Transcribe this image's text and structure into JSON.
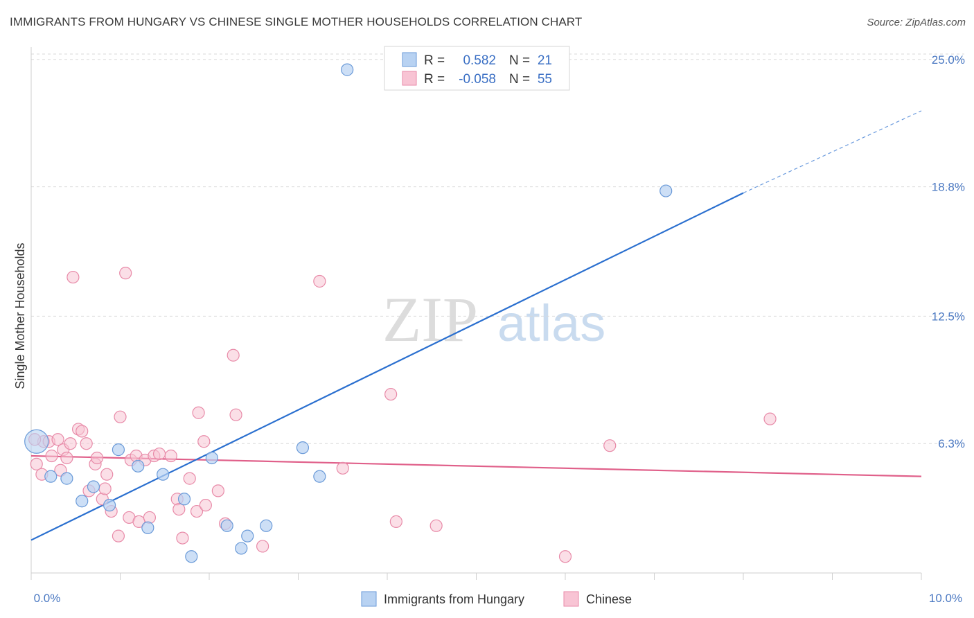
{
  "title": "IMMIGRANTS FROM HUNGARY VS CHINESE SINGLE MOTHER HOUSEHOLDS CORRELATION CHART",
  "source": "Source: ZipAtlas.com",
  "watermark": {
    "zip": "ZIP",
    "atlas": "atlas"
  },
  "colors": {
    "hungary_fill": "#b8d2f2",
    "hungary_stroke": "#6a9ad8",
    "hungary_line": "#2a6fcf",
    "chinese_fill": "#f8c4d4",
    "chinese_stroke": "#e88aa8",
    "chinese_line": "#e0608a",
    "tick_label": "#4a78c2",
    "grid": "#d9d9d9"
  },
  "legend": {
    "r_label": "R =",
    "n_label": "N =",
    "hungary": {
      "r": "0.582",
      "n": "21"
    },
    "chinese": {
      "r": "-0.058",
      "n": "55"
    }
  },
  "chart_data": {
    "type": "scatter",
    "title": "IMMIGRANTS FROM HUNGARY VS CHINESE SINGLE MOTHER HOUSEHOLDS CORRELATION CHART",
    "xlabel": "",
    "ylabel": "Single Mother Households",
    "xlim": [
      0,
      10
    ],
    "ylim": [
      0,
      25.6
    ],
    "x_tick_labels": [
      "0.0%",
      "10.0%"
    ],
    "y_ticks": [
      6.3,
      12.5,
      18.8,
      25.0
    ],
    "y_tick_labels": [
      "6.3%",
      "12.5%",
      "18.8%",
      "25.0%"
    ],
    "grid": true,
    "legend_position": "top-center",
    "series": [
      {
        "name": "Immigrants from Hungary",
        "r": 0.582,
        "n": 21,
        "trend": {
          "x": [
            0,
            8.0
          ],
          "y": [
            1.6,
            18.5
          ],
          "dashed_to": [
            10.0,
            22.5
          ]
        },
        "points": [
          {
            "x": 0.06,
            "y": 6.4,
            "big": true
          },
          {
            "x": 0.22,
            "y": 4.7
          },
          {
            "x": 0.4,
            "y": 4.6
          },
          {
            "x": 0.57,
            "y": 3.5
          },
          {
            "x": 0.7,
            "y": 4.2
          },
          {
            "x": 0.88,
            "y": 3.3
          },
          {
            "x": 0.98,
            "y": 6.0
          },
          {
            "x": 1.2,
            "y": 5.2
          },
          {
            "x": 1.31,
            "y": 2.2
          },
          {
            "x": 1.48,
            "y": 4.8
          },
          {
            "x": 1.72,
            "y": 3.6
          },
          {
            "x": 1.8,
            "y": 0.8
          },
          {
            "x": 2.03,
            "y": 5.6
          },
          {
            "x": 2.2,
            "y": 2.3
          },
          {
            "x": 2.36,
            "y": 1.2
          },
          {
            "x": 2.43,
            "y": 1.8
          },
          {
            "x": 2.64,
            "y": 2.3
          },
          {
            "x": 3.05,
            "y": 6.1
          },
          {
            "x": 3.24,
            "y": 4.7
          },
          {
            "x": 3.55,
            "y": 24.5
          },
          {
            "x": 7.13,
            "y": 18.6
          }
        ]
      },
      {
        "name": "Chinese",
        "r": -0.058,
        "n": 55,
        "trend": {
          "x": [
            0,
            10.0
          ],
          "y": [
            5.7,
            4.7
          ]
        },
        "points": [
          {
            "x": 0.06,
            "y": 5.3
          },
          {
            "x": 0.12,
            "y": 4.8
          },
          {
            "x": 0.14,
            "y": 6.4
          },
          {
            "x": 0.2,
            "y": 6.4
          },
          {
            "x": 0.23,
            "y": 5.7
          },
          {
            "x": 0.3,
            "y": 6.5
          },
          {
            "x": 0.33,
            "y": 5.0
          },
          {
            "x": 0.36,
            "y": 6.0
          },
          {
            "x": 0.4,
            "y": 5.6
          },
          {
            "x": 0.44,
            "y": 6.3
          },
          {
            "x": 0.47,
            "y": 14.4
          },
          {
            "x": 0.53,
            "y": 7.0
          },
          {
            "x": 0.57,
            "y": 6.9
          },
          {
            "x": 0.62,
            "y": 6.3
          },
          {
            "x": 0.65,
            "y": 4.0
          },
          {
            "x": 0.72,
            "y": 5.3
          },
          {
            "x": 0.74,
            "y": 5.6
          },
          {
            "x": 0.8,
            "y": 3.6
          },
          {
            "x": 0.83,
            "y": 4.1
          },
          {
            "x": 0.85,
            "y": 4.8
          },
          {
            "x": 0.9,
            "y": 3.0
          },
          {
            "x": 0.98,
            "y": 1.8
          },
          {
            "x": 1.0,
            "y": 7.6
          },
          {
            "x": 1.06,
            "y": 14.6
          },
          {
            "x": 1.1,
            "y": 2.7
          },
          {
            "x": 1.12,
            "y": 5.5
          },
          {
            "x": 1.18,
            "y": 5.7
          },
          {
            "x": 1.21,
            "y": 2.5
          },
          {
            "x": 1.28,
            "y": 5.5
          },
          {
            "x": 1.33,
            "y": 2.7
          },
          {
            "x": 1.38,
            "y": 5.7
          },
          {
            "x": 1.44,
            "y": 5.8
          },
          {
            "x": 1.57,
            "y": 5.7
          },
          {
            "x": 1.64,
            "y": 3.6
          },
          {
            "x": 1.66,
            "y": 3.1
          },
          {
            "x": 1.7,
            "y": 1.7
          },
          {
            "x": 1.78,
            "y": 4.6
          },
          {
            "x": 1.86,
            "y": 3.0
          },
          {
            "x": 1.88,
            "y": 7.8
          },
          {
            "x": 1.94,
            "y": 6.4
          },
          {
            "x": 1.96,
            "y": 3.3
          },
          {
            "x": 2.1,
            "y": 4.0
          },
          {
            "x": 2.18,
            "y": 2.4
          },
          {
            "x": 2.27,
            "y": 10.6
          },
          {
            "x": 2.3,
            "y": 7.7
          },
          {
            "x": 2.6,
            "y": 1.3
          },
          {
            "x": 3.24,
            "y": 14.2
          },
          {
            "x": 3.5,
            "y": 5.1
          },
          {
            "x": 4.04,
            "y": 8.7
          },
          {
            "x": 4.1,
            "y": 2.5
          },
          {
            "x": 4.55,
            "y": 2.3
          },
          {
            "x": 6.0,
            "y": 0.8
          },
          {
            "x": 6.5,
            "y": 6.2
          },
          {
            "x": 8.3,
            "y": 7.5
          },
          {
            "x": 0.04,
            "y": 6.5
          }
        ]
      }
    ]
  },
  "bottom_legend": {
    "hungary": "Immigrants from Hungary",
    "chinese": "Chinese"
  }
}
